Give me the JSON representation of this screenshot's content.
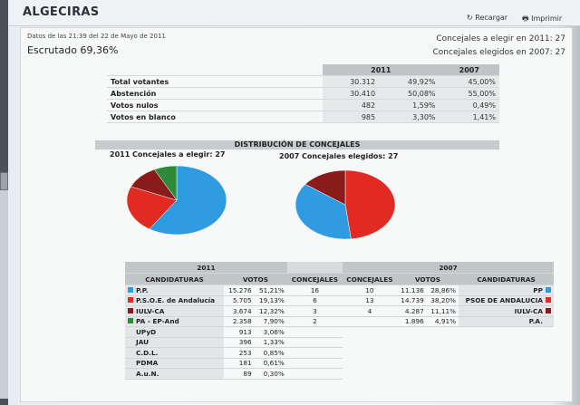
{
  "page": {
    "title": "ALGECIRAS",
    "refresh_label": "Recargar",
    "print_label": "Imprimir"
  },
  "meta": {
    "timestamp": "Datos de las 21:39 del 22 de Mayo de 2011",
    "scrutiny": "Escrutado 69,36%",
    "council_2011": "Concejales a elegir en 2011: 27",
    "council_2007": "Concejales elegidos en 2007: 27"
  },
  "summary": {
    "years": [
      "2011",
      "2007"
    ],
    "rows": [
      {
        "label": "Total votantes",
        "v2011": "30.312",
        "p2011": "49,92%",
        "p2007": "45,00%"
      },
      {
        "label": "Abstención",
        "v2011": "30.410",
        "p2011": "50,08%",
        "p2007": "55,00%"
      },
      {
        "label": "Votos nulos",
        "v2011": "482",
        "p2011": "1,59%",
        "p2007": "0,49%"
      },
      {
        "label": "Votos en blanco",
        "v2011": "985",
        "p2011": "3,30%",
        "p2007": "1,41%"
      }
    ]
  },
  "distribution": {
    "title": "DISTRIBUCIÓN DE CONCEJALES",
    "left_label": "2011 Concejales a elegir: 27",
    "right_label": "2007 Concejales elegidos: 27"
  },
  "chart_data": [
    {
      "type": "pie",
      "slices": [
        {
          "label": "P.P.",
          "value": 16,
          "color": "#2f9be0"
        },
        {
          "label": "P.S.O.E. de Andalucía",
          "value": 6,
          "color": "#e12a22"
        },
        {
          "label": "IULV-CA",
          "value": 3,
          "color": "#8a1b1b"
        },
        {
          "label": "PA - EP-And",
          "value": 2,
          "color": "#2c8a3a"
        }
      ]
    },
    {
      "type": "pie",
      "slices": [
        {
          "label": "PSOE DE ANDALUCIA",
          "value": 13,
          "color": "#e12a22"
        },
        {
          "label": "PP",
          "value": 10,
          "color": "#2f9be0"
        },
        {
          "label": "IULV-CA",
          "value": 4,
          "color": "#8a1b1b"
        }
      ]
    }
  ],
  "results": {
    "year_2011": "2011",
    "year_2007": "2007",
    "headers": {
      "candidaturas": "CANDIDATURAS",
      "votos": "VOTOS",
      "concejales": "CONCEJALES"
    },
    "rows_2011": [
      {
        "name": "P.P.",
        "color": "#2f9be0",
        "votes": "15.276",
        "pct": "51,21%",
        "seats": "16"
      },
      {
        "name": "P.S.O.E. de Andalucía",
        "color": "#e12a22",
        "votes": "5.705",
        "pct": "19,13%",
        "seats": "6"
      },
      {
        "name": "IULV-CA",
        "color": "#8a1b1b",
        "votes": "3.674",
        "pct": "12,32%",
        "seats": "3"
      },
      {
        "name": "PA - EP-And",
        "color": "#2c8a3a",
        "votes": "2.358",
        "pct": "7,90%",
        "seats": "2"
      },
      {
        "name": "UPyD",
        "color": "",
        "votes": "913",
        "pct": "3,06%",
        "seats": ""
      },
      {
        "name": "JAU",
        "color": "",
        "votes": "396",
        "pct": "1,33%",
        "seats": ""
      },
      {
        "name": "C.D.L.",
        "color": "",
        "votes": "253",
        "pct": "0,85%",
        "seats": ""
      },
      {
        "name": "PDMA",
        "color": "",
        "votes": "181",
        "pct": "0,61%",
        "seats": ""
      },
      {
        "name": "A.u.N.",
        "color": "",
        "votes": "89",
        "pct": "0,30%",
        "seats": ""
      }
    ],
    "rows_2007": [
      {
        "seats": "10",
        "votes": "11.136",
        "pct": "28,86%",
        "name": "PP",
        "color": "#2f9be0"
      },
      {
        "seats": "13",
        "votes": "14.739",
        "pct": "38,20%",
        "name": "PSOE DE ANDALUCIA",
        "color": "#e12a22"
      },
      {
        "seats": "4",
        "votes": "4.287",
        "pct": "11,11%",
        "name": "IULV-CA",
        "color": "#8a1b1b"
      },
      {
        "seats": "",
        "votes": "1.896",
        "pct": "4,91%",
        "name": "P.A.",
        "color": ""
      }
    ]
  }
}
